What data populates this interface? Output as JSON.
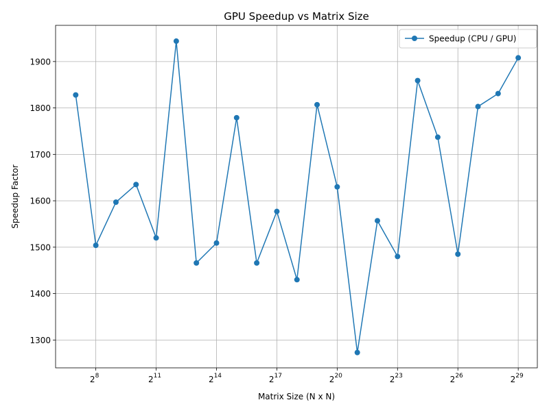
{
  "chart_data": {
    "type": "line",
    "title": "GPU Speedup vs Matrix Size",
    "xlabel": "Matrix Size (N x N)",
    "ylabel": "Speedup Factor",
    "x_scale": "log2",
    "x": [
      128,
      256,
      512,
      1024,
      2048,
      4096,
      8192,
      16384,
      32768,
      65536,
      131072,
      262144,
      524288,
      1048576,
      2097152,
      4194304,
      8388608,
      16777216,
      33554432,
      67108864,
      134217728,
      268435456,
      536870912
    ],
    "x_tick_labels": [
      {
        "base": "2",
        "exp": "8",
        "value": 256
      },
      {
        "base": "2",
        "exp": "11",
        "value": 2048
      },
      {
        "base": "2",
        "exp": "14",
        "value": 16384
      },
      {
        "base": "2",
        "exp": "17",
        "value": 131072
      },
      {
        "base": "2",
        "exp": "20",
        "value": 1048576
      },
      {
        "base": "2",
        "exp": "23",
        "value": 8388608
      },
      {
        "base": "2",
        "exp": "26",
        "value": 67108864
      },
      {
        "base": "2",
        "exp": "29",
        "value": 536870912
      }
    ],
    "y_ticks": [
      1300,
      1400,
      1500,
      1600,
      1700,
      1800,
      1900
    ],
    "xlim_log2": [
      6.0,
      29.95
    ],
    "ylim": [
      1240,
      1978
    ],
    "grid": true,
    "legend_position": "top-right",
    "series": [
      {
        "name": "Speedup (CPU / GPU)",
        "color": "#1f77b4",
        "marker": "circle",
        "values": [
          1828,
          1504,
          1597,
          1635,
          1520,
          1944,
          1466,
          1509,
          1779,
          1466,
          1577,
          1430,
          1807,
          1630,
          1273,
          1557,
          1480,
          1859,
          1737,
          1485,
          1803,
          1831,
          1908
        ]
      }
    ]
  }
}
